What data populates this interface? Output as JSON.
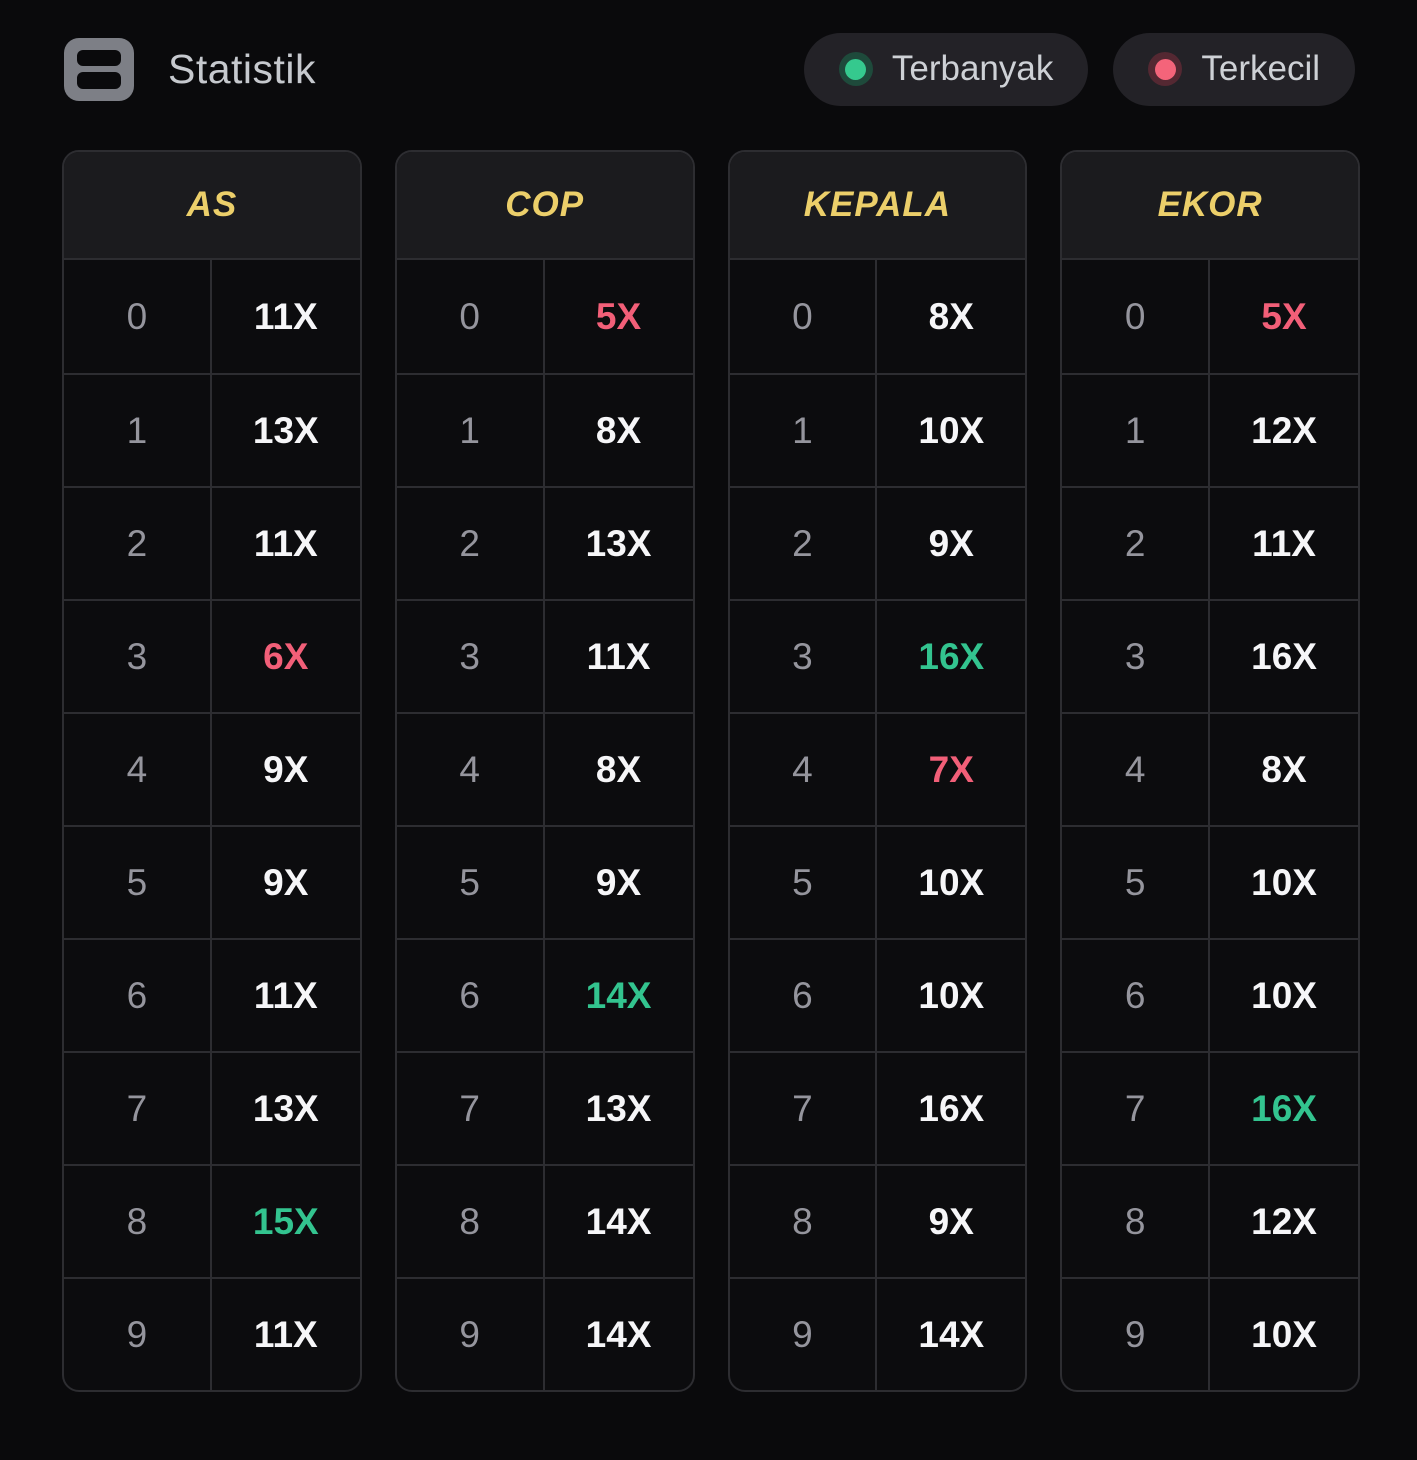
{
  "colors": {
    "max_highlight": "#33c48f",
    "min_highlight": "#f25f78",
    "header_text": "#eccf6a",
    "value_text": "#f6f6f8",
    "digit_text": "#95959d"
  },
  "header": {
    "title": "Statistik",
    "icon": "statistics-icon",
    "legend": [
      {
        "id": "terbanyak",
        "label": "Terbanyak",
        "dot_color": "#35c98e",
        "ring_color": "#1e4a3b"
      },
      {
        "id": "terkecil",
        "label": "Terkecil",
        "dot_color": "#f4647a",
        "ring_color": "#542832"
      }
    ]
  },
  "tables": [
    {
      "title": "AS",
      "rows": [
        {
          "digit": "0",
          "value": "11X",
          "tag": "normal"
        },
        {
          "digit": "1",
          "value": "13X",
          "tag": "normal"
        },
        {
          "digit": "2",
          "value": "11X",
          "tag": "normal"
        },
        {
          "digit": "3",
          "value": "6X",
          "tag": "min"
        },
        {
          "digit": "4",
          "value": "9X",
          "tag": "normal"
        },
        {
          "digit": "5",
          "value": "9X",
          "tag": "normal"
        },
        {
          "digit": "6",
          "value": "11X",
          "tag": "normal"
        },
        {
          "digit": "7",
          "value": "13X",
          "tag": "normal"
        },
        {
          "digit": "8",
          "value": "15X",
          "tag": "max"
        },
        {
          "digit": "9",
          "value": "11X",
          "tag": "normal"
        }
      ]
    },
    {
      "title": "COP",
      "rows": [
        {
          "digit": "0",
          "value": "5X",
          "tag": "min"
        },
        {
          "digit": "1",
          "value": "8X",
          "tag": "normal"
        },
        {
          "digit": "2",
          "value": "13X",
          "tag": "normal"
        },
        {
          "digit": "3",
          "value": "11X",
          "tag": "normal"
        },
        {
          "digit": "4",
          "value": "8X",
          "tag": "normal"
        },
        {
          "digit": "5",
          "value": "9X",
          "tag": "normal"
        },
        {
          "digit": "6",
          "value": "14X",
          "tag": "max"
        },
        {
          "digit": "7",
          "value": "13X",
          "tag": "normal"
        },
        {
          "digit": "8",
          "value": "14X",
          "tag": "normal"
        },
        {
          "digit": "9",
          "value": "14X",
          "tag": "normal"
        }
      ]
    },
    {
      "title": "KEPALA",
      "rows": [
        {
          "digit": "0",
          "value": "8X",
          "tag": "normal"
        },
        {
          "digit": "1",
          "value": "10X",
          "tag": "normal"
        },
        {
          "digit": "2",
          "value": "9X",
          "tag": "normal"
        },
        {
          "digit": "3",
          "value": "16X",
          "tag": "max"
        },
        {
          "digit": "4",
          "value": "7X",
          "tag": "min"
        },
        {
          "digit": "5",
          "value": "10X",
          "tag": "normal"
        },
        {
          "digit": "6",
          "value": "10X",
          "tag": "normal"
        },
        {
          "digit": "7",
          "value": "16X",
          "tag": "normal"
        },
        {
          "digit": "8",
          "value": "9X",
          "tag": "normal"
        },
        {
          "digit": "9",
          "value": "14X",
          "tag": "normal"
        }
      ]
    },
    {
      "title": "EKOR",
      "rows": [
        {
          "digit": "0",
          "value": "5X",
          "tag": "min"
        },
        {
          "digit": "1",
          "value": "12X",
          "tag": "normal"
        },
        {
          "digit": "2",
          "value": "11X",
          "tag": "normal"
        },
        {
          "digit": "3",
          "value": "16X",
          "tag": "normal"
        },
        {
          "digit": "4",
          "value": "8X",
          "tag": "normal"
        },
        {
          "digit": "5",
          "value": "10X",
          "tag": "normal"
        },
        {
          "digit": "6",
          "value": "10X",
          "tag": "normal"
        },
        {
          "digit": "7",
          "value": "16X",
          "tag": "max"
        },
        {
          "digit": "8",
          "value": "12X",
          "tag": "normal"
        },
        {
          "digit": "9",
          "value": "10X",
          "tag": "normal"
        }
      ]
    }
  ]
}
